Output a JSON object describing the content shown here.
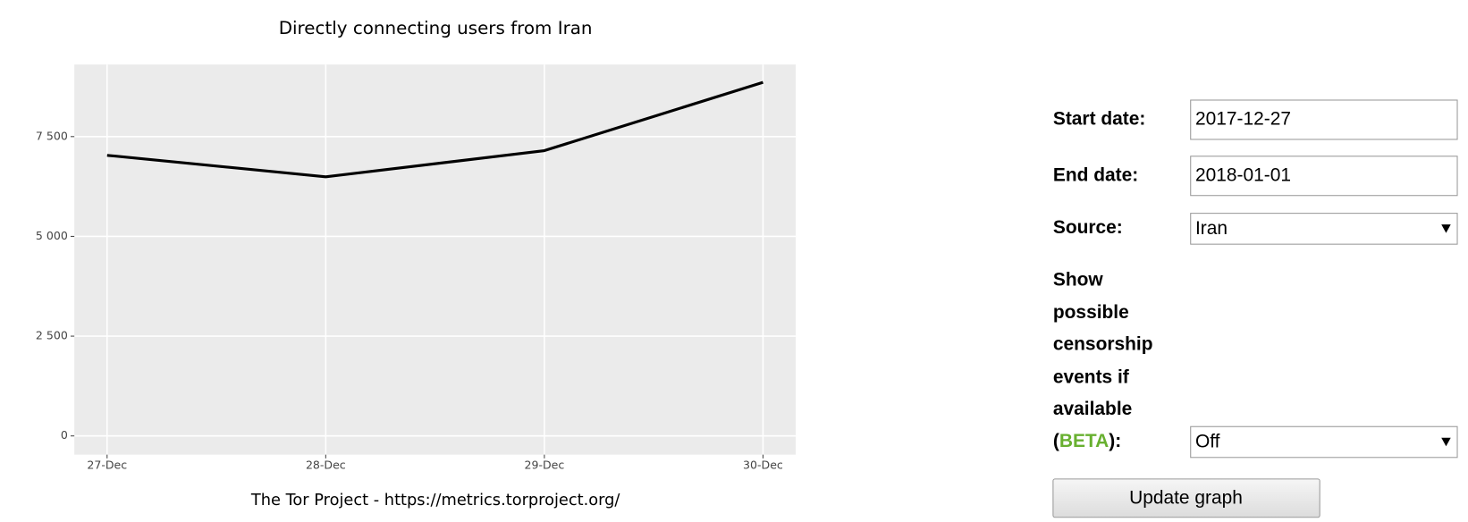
{
  "chart_data": {
    "type": "line",
    "title": "Directly connecting users from Iran",
    "caption": "The Tor Project - https://metrics.torproject.org/",
    "categories": [
      "27-Dec",
      "28-Dec",
      "29-Dec",
      "30-Dec"
    ],
    "values": [
      7031,
      6492,
      7148,
      8859
    ],
    "color": "#000000",
    "ylim": [
      -469,
      9305
    ],
    "yticks": [
      0,
      {
        "value": 2500,
        "label": "2 500"
      },
      {
        "value": 5000,
        "label": "5 000"
      },
      {
        "value": 7500,
        "label": "7 500"
      }
    ],
    "grid": true
  },
  "form": {
    "start_date": {
      "label": "Start date:",
      "value": "2017-12-27"
    },
    "end_date": {
      "label": "End date:",
      "value": "2018-01-01"
    },
    "source": {
      "label": "Source:",
      "value": "Iran"
    },
    "events": {
      "lines": [
        "Show",
        "possible",
        "censorship",
        "events if",
        "available"
      ],
      "open": "(",
      "beta": "BETA",
      "close": "):",
      "value": "Off"
    },
    "button": "Update graph"
  }
}
